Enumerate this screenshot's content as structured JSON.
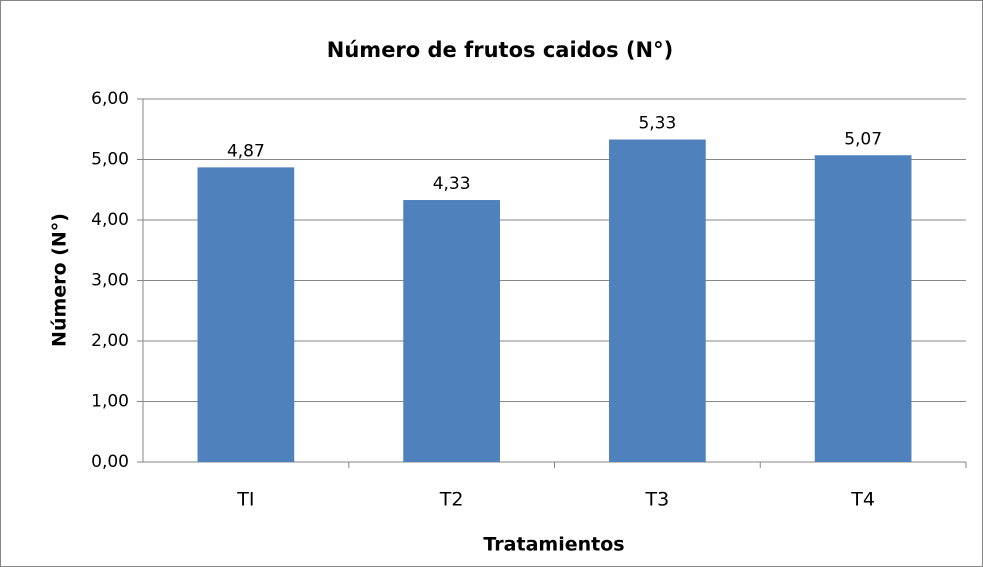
{
  "chart_data": {
    "type": "bar",
    "title": "Número de frutos caidos (N°)",
    "x_label": "Tratamientos",
    "y_label": "Número (N°)",
    "categories": [
      "TI",
      "T2",
      "T3",
      "T4"
    ],
    "values": [
      4.87,
      4.33,
      5.33,
      5.07
    ],
    "value_labels": [
      "4,87",
      "4,33",
      "5,33",
      "5,07"
    ],
    "color": "#4f81bd",
    "ylim": [
      0,
      6
    ],
    "yticks": [
      {
        "value": 0,
        "label": "0,00"
      },
      {
        "value": 1,
        "label": "1,00"
      },
      {
        "value": 2,
        "label": "2,00"
      },
      {
        "value": 3,
        "label": "3,00"
      },
      {
        "value": 4,
        "label": "4,00"
      },
      {
        "value": 5,
        "label": "5,00"
      },
      {
        "value": 6,
        "label": "6,00"
      }
    ],
    "grid": true
  }
}
